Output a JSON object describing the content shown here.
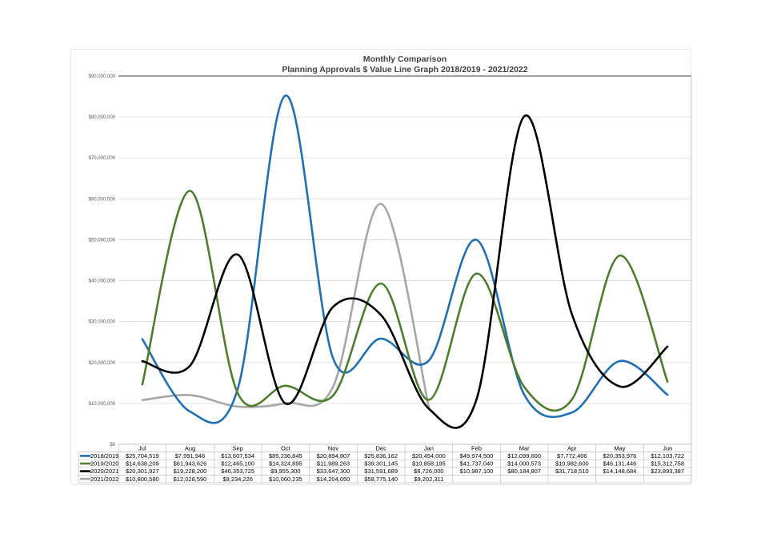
{
  "chart_data": {
    "type": "line",
    "title": "Monthly Comparison",
    "subtitle": "Planning Approvals $ Value Line Graph 2018/2019 - 2021/2022",
    "xlabel": "",
    "ylabel": "",
    "ylim": [
      0,
      90000000
    ],
    "y_ticks": [
      0,
      10000000,
      20000000,
      30000000,
      40000000,
      50000000,
      60000000,
      70000000,
      80000000,
      90000000
    ],
    "y_tick_labels": [
      "$0",
      "$10,000,000",
      "$20,000,000",
      "$30,000,000",
      "$40,000,000",
      "$50,000,000",
      "$60,000,000",
      "$70,000,000",
      "$80,000,000",
      "$90,000,000"
    ],
    "grid": true,
    "legend": "data-table-bottom",
    "categories": [
      "Jul",
      "Aug",
      "Sep",
      "Oct",
      "Nov",
      "Dec",
      "Jan",
      "Feb",
      "Mar",
      "Apr",
      "May",
      "Jun"
    ],
    "series": [
      {
        "name": "2018/2019",
        "color": "#1f6fb5",
        "values": [
          25704519,
          7991946,
          13607534,
          85236845,
          20894807,
          25836162,
          20454000,
          49974500,
          12099600,
          7772406,
          20353976,
          12103722
        ],
        "labels": [
          "$25,704,519",
          "$7,991,946",
          "$13,607,534",
          "$85,236,845",
          "$20,894,807",
          "$25,836,162",
          "$20,454,000",
          "$49,974,500",
          "$12,099,600",
          "$7,772,406",
          "$20,353,976",
          "$12,103,722"
        ]
      },
      {
        "name": "2019/2020",
        "color": "#4e7d2a",
        "values": [
          14638209,
          61943626,
          12465100,
          14324895,
          11989263,
          39301145,
          10858195,
          41737040,
          14000573,
          10982600,
          46131446,
          15312758
        ],
        "labels": [
          "$14,638,209",
          "$61,943,626",
          "$12,465,100",
          "$14,324,895",
          "$11,989,263",
          "$39,301,145",
          "$10,858,195",
          "$41,737,040",
          "$14,000,573",
          "$10,982,600",
          "$46,131,446",
          "$15,312,758"
        ]
      },
      {
        "name": "2020/2021",
        "color": "#000000",
        "values": [
          20301927,
          19228200,
          46353725,
          9955300,
          33647300,
          31591689,
          8726000,
          10987100,
          80184807,
          31718510,
          14148684,
          23893387
        ],
        "labels": [
          "$20,301,927",
          "$19,228,200",
          "$46,353,725",
          "$9,955,300",
          "$33,647,300",
          "$31,591,689",
          "$8,726,000",
          "$10,987,100",
          "$80,184,807",
          "$31,718,510",
          "$14,148,684",
          "$23,893,387"
        ]
      },
      {
        "name": "2021/2022",
        "color": "#a6a6a6",
        "values": [
          10800580,
          12028590,
          9234226,
          10060235,
          14204050,
          58775140,
          9202311,
          null,
          null,
          null,
          null,
          null
        ],
        "labels": [
          "$10,800,580",
          "$12,028,590",
          "$9,234,226",
          "$10,060,235",
          "$14,204,050",
          "$58,775,140",
          "$9,202,311",
          "",
          "",
          "",
          "",
          ""
        ]
      }
    ]
  }
}
